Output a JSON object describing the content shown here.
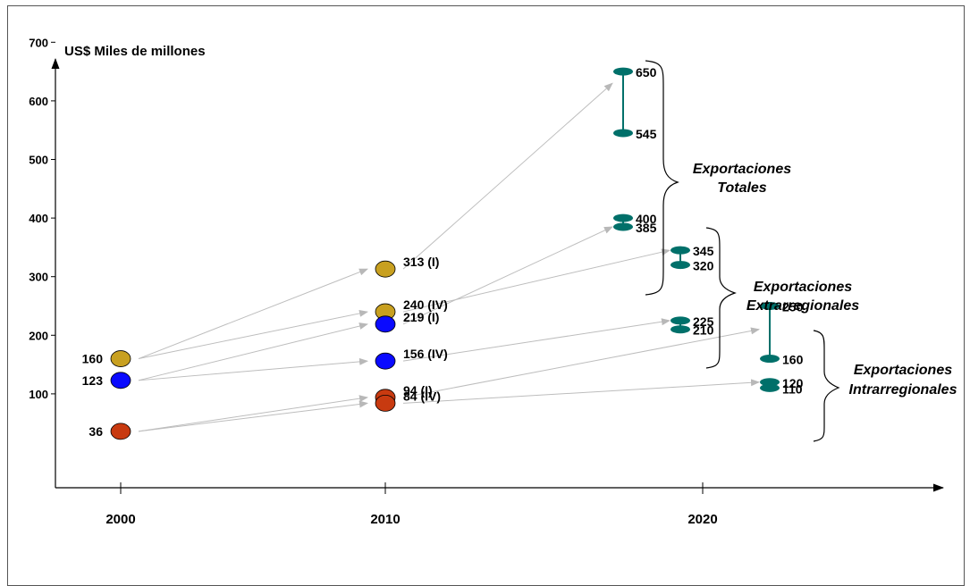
{
  "chart_data": {
    "type": "scatter",
    "ylabel": "US$ Miles de millones",
    "x_ticks": [
      "2000",
      "2010",
      "2020"
    ],
    "y_ticks": [
      100,
      200,
      300,
      400,
      500,
      600,
      700
    ],
    "points": [
      {
        "year": 2000,
        "value": 160,
        "label": "160",
        "color": "#c8a020"
      },
      {
        "year": 2000,
        "value": 123,
        "label": "123",
        "color": "#0a0aff"
      },
      {
        "year": 2000,
        "value": 36,
        "label": "36",
        "color": "#c83a10"
      },
      {
        "year": 2010,
        "value": 313,
        "label": "313 (I)",
        "color": "#c8a020"
      },
      {
        "year": 2010,
        "value": 240,
        "label": "240 (IV)",
        "color": "#c8a020"
      },
      {
        "year": 2010,
        "value": 219,
        "label": "219 (I)",
        "color": "#0a0aff"
      },
      {
        "year": 2010,
        "value": 156,
        "label": "156 (IV)",
        "color": "#0a0aff"
      },
      {
        "year": 2010,
        "value": 94,
        "label": "94 (I)",
        "color": "#c83a10"
      },
      {
        "year": 2010,
        "value": 84,
        "label": "84 (IV)",
        "color": "#c83a10"
      }
    ],
    "ranges_2020": [
      {
        "group": "Exportaciones Totales",
        "high": 650,
        "low": 545,
        "high_label": "650",
        "low_label": "545"
      },
      {
        "group": "Exportaciones Totales",
        "high": 345,
        "low": 320,
        "high_label": "345",
        "low_label": "320"
      },
      {
        "group": "Exportaciones Extrarregionales",
        "high": 400,
        "low": 385,
        "high_label": "400",
        "low_label": "385"
      },
      {
        "group": "Exportaciones Extrarregionales",
        "high": 225,
        "low": 210,
        "high_label": "225",
        "low_label": "210"
      },
      {
        "group": "Exportaciones Intrarregionales",
        "high": 250,
        "low": 160,
        "high_label": "250",
        "low_label": "160"
      },
      {
        "group": "Exportaciones Intrarregionales",
        "high": 120,
        "low": 110,
        "high_label": "120",
        "low_label": "110"
      }
    ],
    "group_labels": [
      {
        "line1": "Exportaciones",
        "line2": "Totales"
      },
      {
        "line1": "Exportaciones",
        "line2": "Extrarregionales"
      },
      {
        "line1": "Exportaciones",
        "line2": "Intrarregionales"
      }
    ]
  }
}
